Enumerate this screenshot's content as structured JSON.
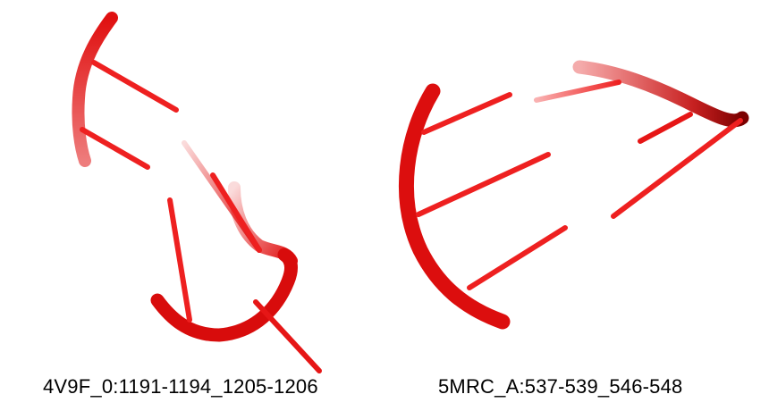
{
  "colors": {
    "backbone": "#e01010",
    "backbone_dark": "#9a0000",
    "base": "#ee2020",
    "background": "#ffffff",
    "caption": "#000000"
  },
  "panels": [
    {
      "caption": "4V9F_0:1191-1194_1205-1206"
    },
    {
      "caption": "5MRC_A:537-539_546-548"
    }
  ]
}
